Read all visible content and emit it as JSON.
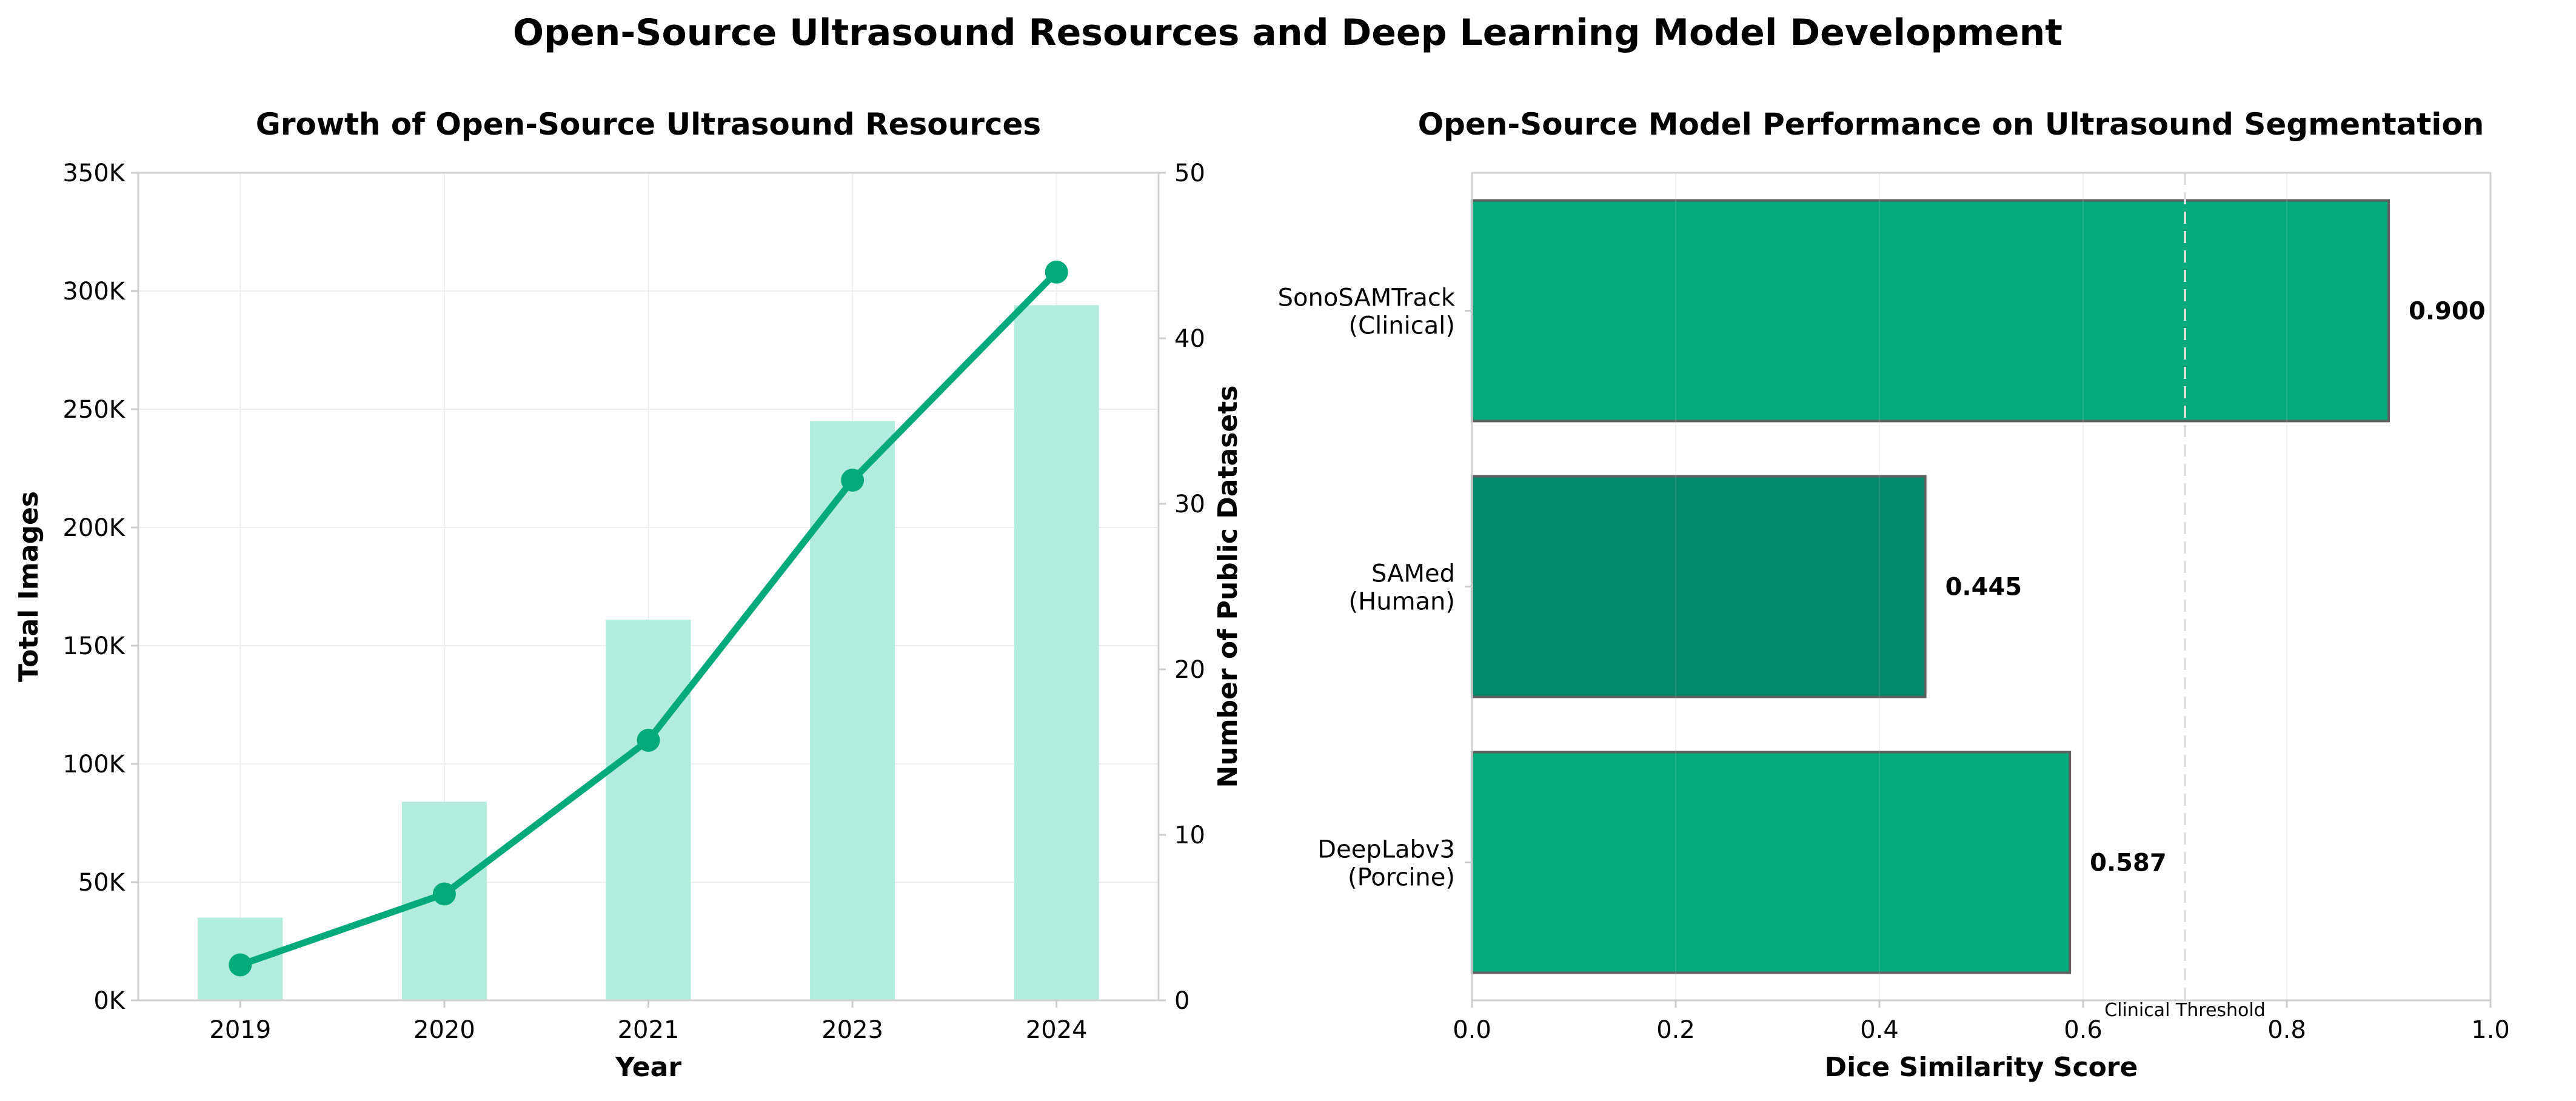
{
  "title": "Open-Source Ultrasound Resources and Deep Learning Model Development",
  "chart_data": [
    {
      "type": "bar+line",
      "title": "Growth of Open-Source Ultrasound Resources",
      "xlabel": "Year",
      "ylabel": "Total Images",
      "y2label": "Number of Public Datasets",
      "categories": [
        "2019",
        "2020",
        "2021",
        "2023",
        "2024"
      ],
      "bars": {
        "axis": "right",
        "values": [
          5,
          12,
          23,
          35,
          42
        ],
        "color": "#b2ecdd"
      },
      "line": {
        "axis": "left",
        "values": [
          15000,
          45000,
          110000,
          220000,
          308000
        ],
        "color": "#04a97c"
      },
      "ylim": [
        0,
        350000
      ],
      "yticks": [
        0,
        50000,
        100000,
        150000,
        200000,
        250000,
        300000,
        350000
      ],
      "ytick_labels": [
        "0K",
        "50K",
        "100K",
        "150K",
        "200K",
        "250K",
        "300K",
        "350K"
      ],
      "y2lim": [
        0,
        50
      ],
      "y2ticks": [
        "0",
        "10",
        "20",
        "30",
        "40",
        "50"
      ],
      "grid": true
    },
    {
      "type": "bar",
      "orientation": "horizontal",
      "title": "Open-Source Model Performance on Ultrasound Segmentation",
      "xlabel": "Dice Similarity Score",
      "categories": [
        [
          "SonoSAMTrack",
          "(Clinical)"
        ],
        [
          "SAMed",
          "(Human)"
        ],
        [
          "DeepLabv3",
          "(Porcine)"
        ]
      ],
      "values": [
        0.9,
        0.445,
        0.587
      ],
      "value_labels": [
        "0.900",
        "0.445",
        "0.587"
      ],
      "colors": [
        "#04a97c",
        "#03896d",
        "#04a97c"
      ],
      "xlim": [
        0,
        1.0
      ],
      "xticks": [
        "0.0",
        "0.2",
        "0.4",
        "0.6",
        "0.8",
        "1.0"
      ],
      "threshold": {
        "value": 0.7,
        "label": "Clinical Threshold"
      },
      "grid": true
    }
  ]
}
